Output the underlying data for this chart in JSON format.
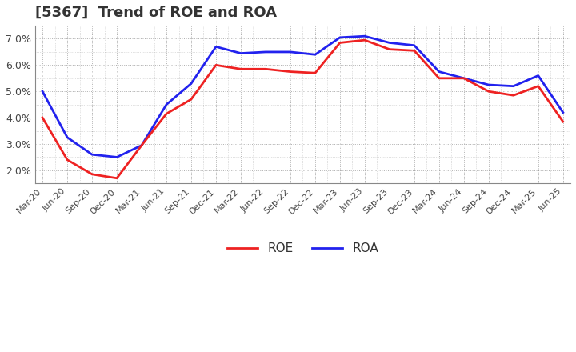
{
  "title": "[5367]  Trend of ROE and ROA",
  "x_labels": [
    "Mar-20",
    "Jun-20",
    "Sep-20",
    "Dec-20",
    "Mar-21",
    "Jun-21",
    "Sep-21",
    "Dec-21",
    "Mar-22",
    "Jun-22",
    "Sep-22",
    "Dec-22",
    "Mar-23",
    "Jun-23",
    "Sep-23",
    "Dec-23",
    "Mar-24",
    "Jun-24",
    "Sep-24",
    "Dec-24",
    "Mar-25",
    "Jun-25"
  ],
  "roe": [
    4.0,
    2.4,
    1.85,
    1.7,
    2.95,
    4.15,
    4.7,
    6.0,
    5.85,
    5.85,
    5.75,
    5.7,
    6.85,
    6.95,
    6.6,
    6.55,
    5.5,
    5.5,
    5.0,
    4.85,
    5.2,
    3.85
  ],
  "roa": [
    5.0,
    3.25,
    2.6,
    2.5,
    2.95,
    4.5,
    5.3,
    6.7,
    6.45,
    6.5,
    6.5,
    6.4,
    7.05,
    7.1,
    6.85,
    6.75,
    5.75,
    5.5,
    5.25,
    5.2,
    5.6,
    4.2
  ],
  "roe_color": "#ee2222",
  "roa_color": "#2222ee",
  "ylim": [
    1.5,
    7.5
  ],
  "yticks": [
    2.0,
    3.0,
    4.0,
    5.0,
    6.0,
    7.0
  ],
  "background_color": "#ffffff",
  "grid_color": "#999999",
  "legend_roe": "ROE",
  "legend_roa": "ROA",
  "linewidth": 2.0,
  "title_fontsize": 13,
  "tick_fontsize": 8,
  "ytick_fontsize": 9
}
